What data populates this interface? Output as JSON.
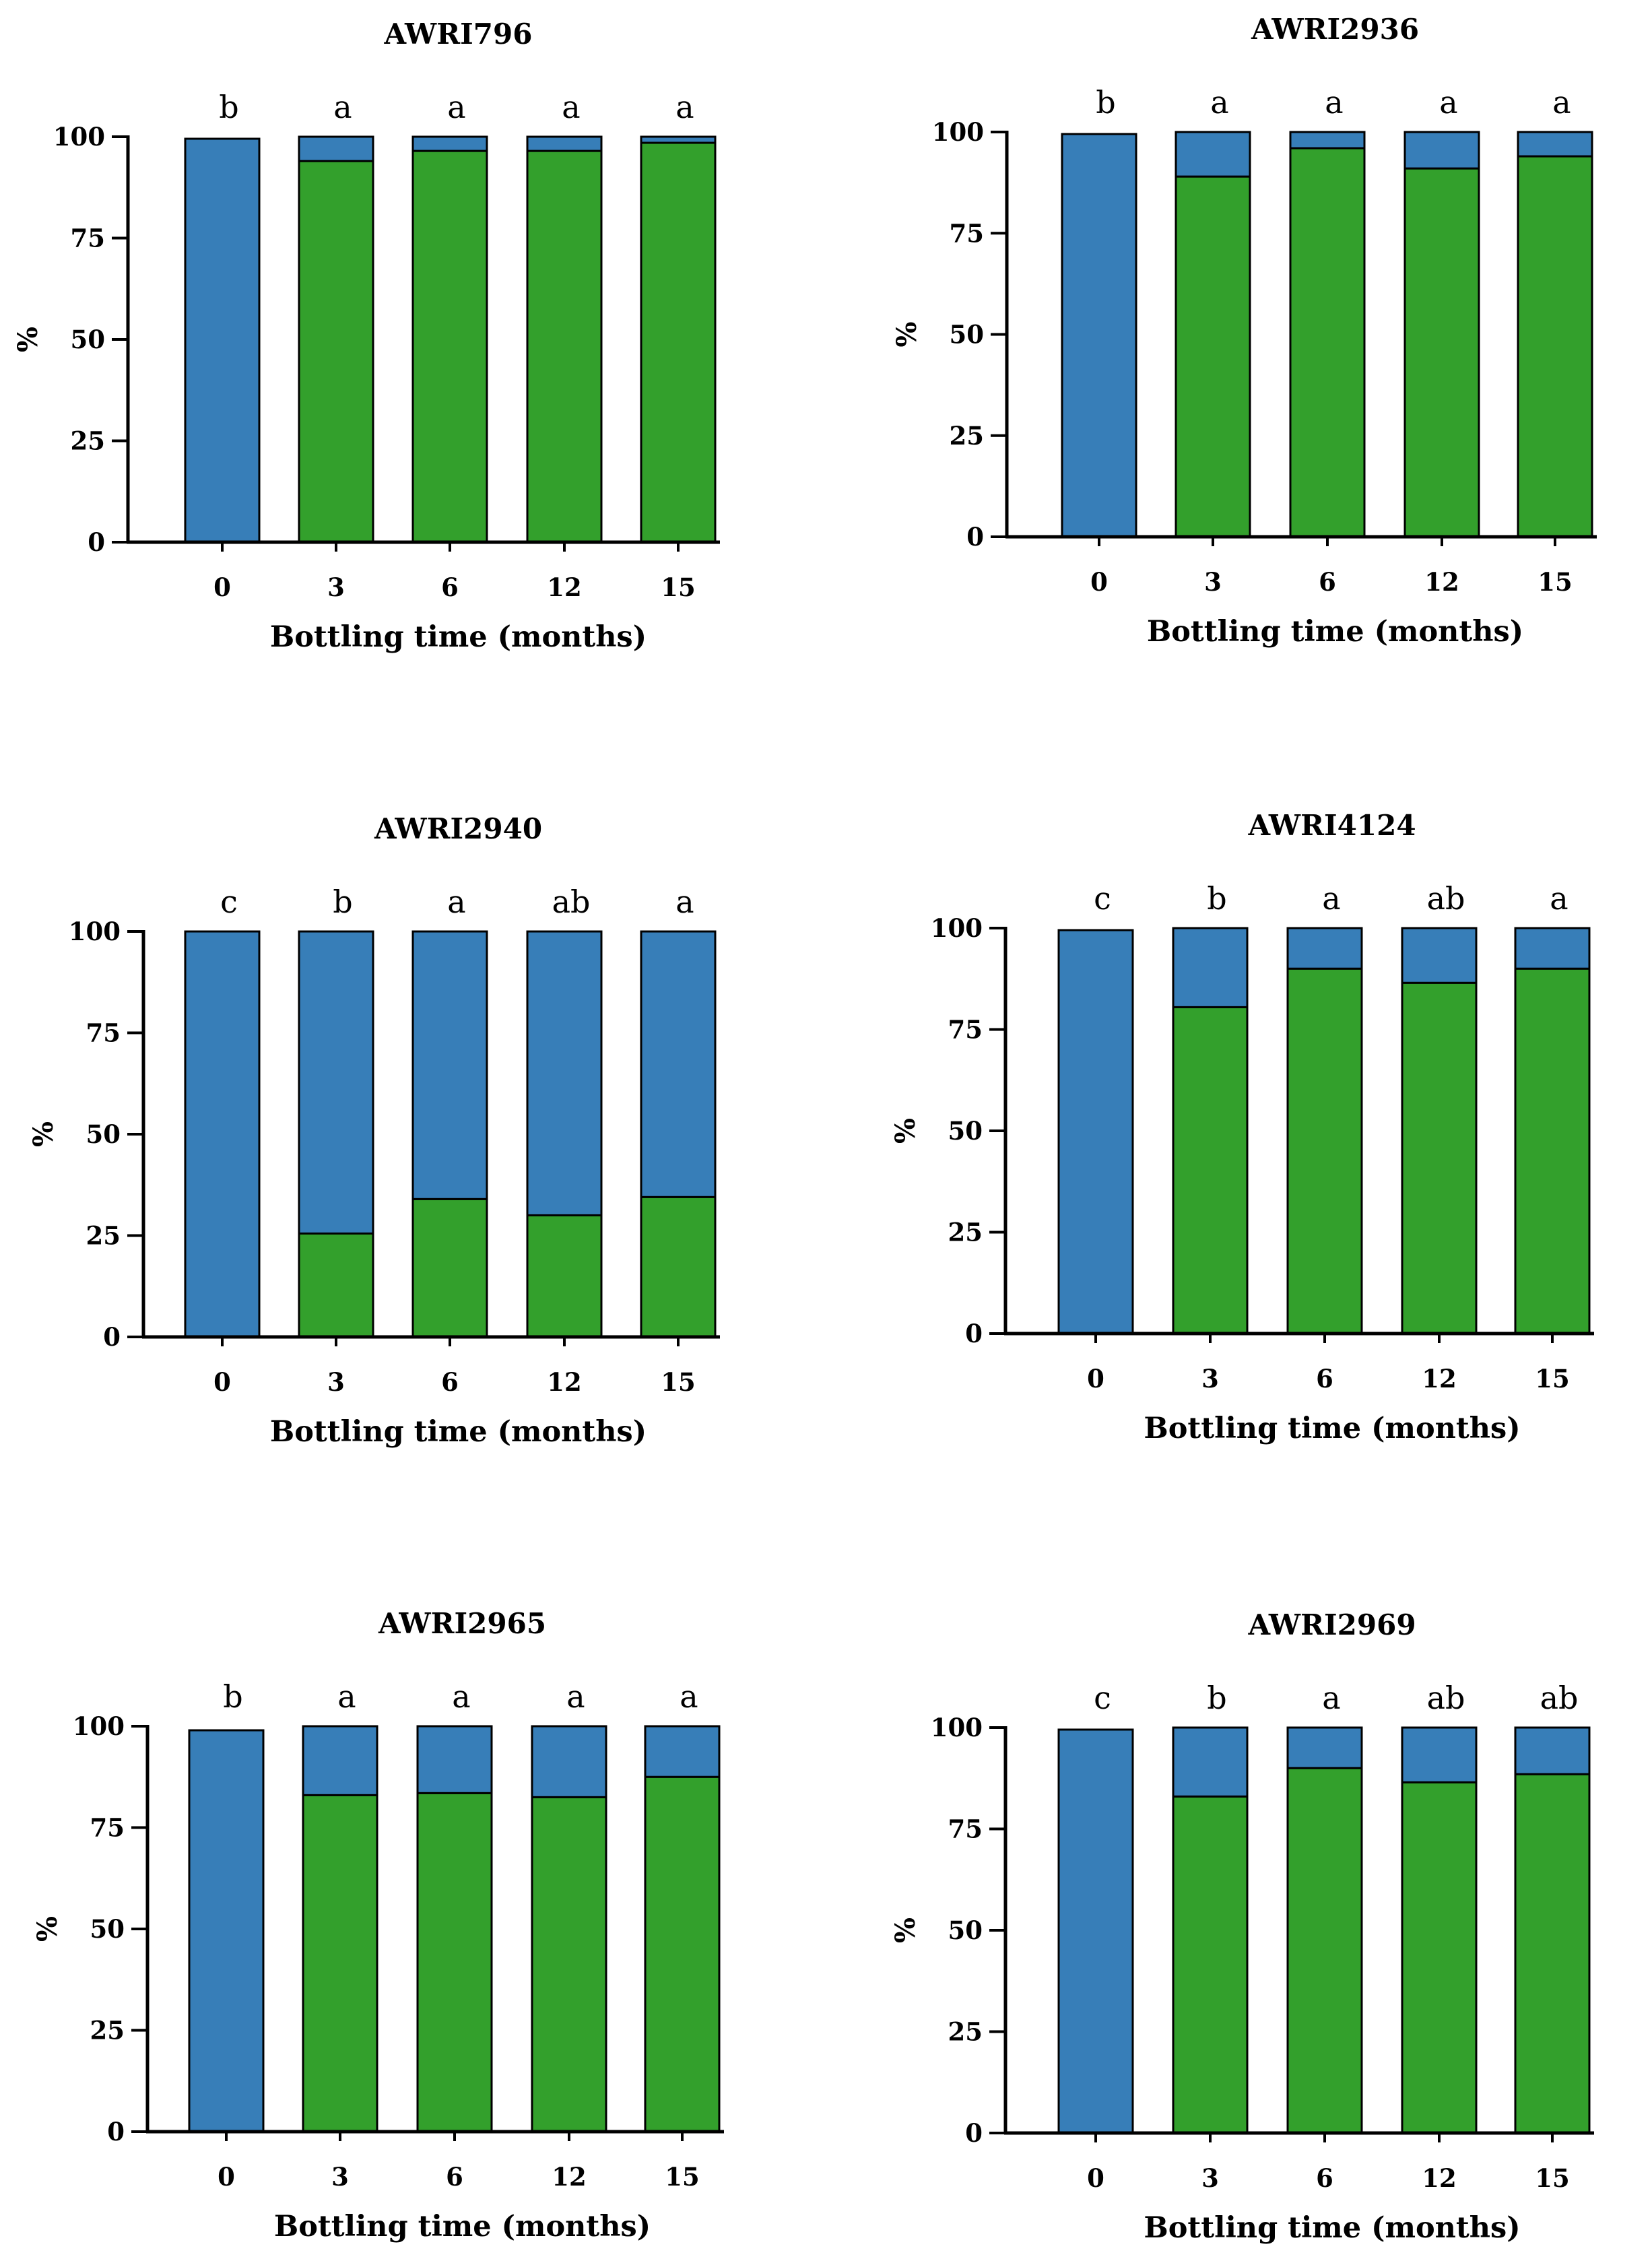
{
  "colors": {
    "top": "#377eb8",
    "bottom": "#33a02c",
    "stroke": "#000000"
  },
  "chart_data": [
    {
      "type": "bar",
      "stacked": true,
      "title": "AWRI796",
      "xlabel": "Bottling time (months)",
      "ylabel": "%",
      "categories": [
        "0",
        "3",
        "6",
        "12",
        "15"
      ],
      "ylim": [
        0,
        100
      ],
      "yticks": [
        0,
        25,
        50,
        75,
        100
      ],
      "series": [
        {
          "name": "green",
          "values": [
            0,
            94,
            96.5,
            96.5,
            98.5
          ]
        },
        {
          "name": "blue",
          "values": [
            99.5,
            6,
            3.5,
            3.5,
            1.5
          ]
        }
      ],
      "letters": [
        "b",
        "a",
        "a",
        "a",
        "a"
      ]
    },
    {
      "type": "bar",
      "stacked": true,
      "title": "AWRI2936",
      "xlabel": "Bottling time (months)",
      "ylabel": "%",
      "categories": [
        "0",
        "3",
        "6",
        "12",
        "15"
      ],
      "ylim": [
        0,
        100
      ],
      "yticks": [
        0,
        25,
        50,
        75,
        100
      ],
      "series": [
        {
          "name": "green",
          "values": [
            0,
            89,
            96,
            91,
            94
          ]
        },
        {
          "name": "blue",
          "values": [
            99.5,
            11,
            4,
            9,
            6
          ]
        }
      ],
      "letters": [
        "b",
        "a",
        "a",
        "a",
        "a"
      ]
    },
    {
      "type": "bar",
      "stacked": true,
      "title": "AWRI2940",
      "xlabel": "Bottling time (months)",
      "ylabel": "%",
      "categories": [
        "0",
        "3",
        "6",
        "12",
        "15"
      ],
      "ylim": [
        0,
        100
      ],
      "yticks": [
        0,
        25,
        50,
        75,
        100
      ],
      "series": [
        {
          "name": "green",
          "values": [
            0,
            25.5,
            34,
            30,
            34.5
          ]
        },
        {
          "name": "blue",
          "values": [
            100,
            74.5,
            66,
            70,
            65.5
          ]
        }
      ],
      "letters": [
        "c",
        "b",
        "a",
        "ab",
        "a"
      ]
    },
    {
      "type": "bar",
      "stacked": true,
      "title": "AWRI4124",
      "xlabel": "Bottling time (months)",
      "ylabel": "%",
      "categories": [
        "0",
        "3",
        "6",
        "12",
        "15"
      ],
      "ylim": [
        0,
        100
      ],
      "yticks": [
        0,
        25,
        50,
        75,
        100
      ],
      "series": [
        {
          "name": "green",
          "values": [
            0,
            80.5,
            90,
            86.5,
            90
          ]
        },
        {
          "name": "blue",
          "values": [
            99.5,
            19.5,
            10,
            13.5,
            10
          ]
        }
      ],
      "letters": [
        "c",
        "b",
        "a",
        "ab",
        "a"
      ]
    },
    {
      "type": "bar",
      "stacked": true,
      "title": "AWRI2965",
      "xlabel": "Bottling time (months)",
      "ylabel": "%",
      "categories": [
        "0",
        "3",
        "6",
        "12",
        "15"
      ],
      "ylim": [
        0,
        100
      ],
      "yticks": [
        0,
        25,
        50,
        75,
        100
      ],
      "series": [
        {
          "name": "green",
          "values": [
            0,
            83,
            83.5,
            82.5,
            87.5
          ]
        },
        {
          "name": "blue",
          "values": [
            99,
            17,
            16.5,
            17.5,
            12.5
          ]
        }
      ],
      "letters": [
        "b",
        "a",
        "a",
        "a",
        "a"
      ]
    },
    {
      "type": "bar",
      "stacked": true,
      "title": "AWRI2969",
      "xlabel": "Bottling time (months)",
      "ylabel": "%",
      "categories": [
        "0",
        "3",
        "6",
        "12",
        "15"
      ],
      "ylim": [
        0,
        100
      ],
      "yticks": [
        0,
        25,
        50,
        75,
        100
      ],
      "series": [
        {
          "name": "green",
          "values": [
            0,
            83,
            90,
            86.5,
            88.5
          ]
        },
        {
          "name": "blue",
          "values": [
            99.5,
            17,
            10,
            13.5,
            11.5
          ]
        }
      ],
      "letters": [
        "c",
        "b",
        "a",
        "ab",
        "ab"
      ]
    }
  ]
}
